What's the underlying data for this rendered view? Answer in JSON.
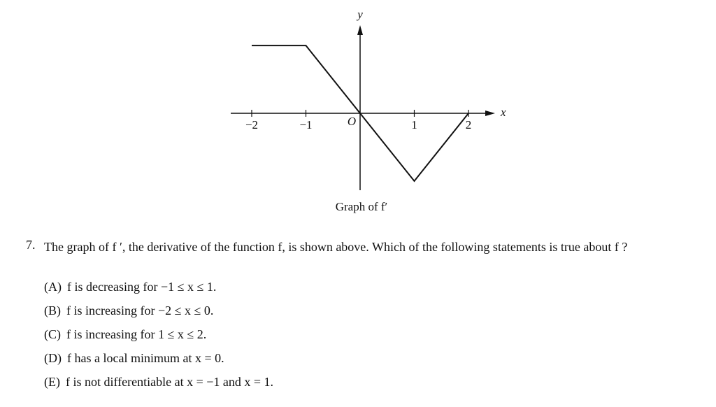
{
  "figure": {
    "caption": "Graph of f′",
    "x_label": "x",
    "y_label": "y",
    "origin_label": "O",
    "xticks": [
      {
        "value": -2,
        "label": "−2"
      },
      {
        "value": -1,
        "label": "−1"
      },
      1,
      2
    ],
    "points": {
      "x": [
        -2,
        -1,
        0,
        1,
        2
      ],
      "y": [
        1.25,
        1.25,
        0,
        -1.25,
        0
      ]
    }
  },
  "question": {
    "number": "7.",
    "text": "The graph of f ′, the derivative of the function f, is shown above. Which of the following statements is true about f ?",
    "options": [
      {
        "label": "(A)",
        "text": "f is decreasing for −1 ≤ x ≤ 1."
      },
      {
        "label": "(B)",
        "text": "f is increasing for −2 ≤ x ≤ 0."
      },
      {
        "label": "(C)",
        "text": "f is increasing for 1 ≤ x ≤ 2."
      },
      {
        "label": "(D)",
        "text": "f has a local minimum at x = 0."
      },
      {
        "label": "(E)",
        "text": "f is not differentiable at x = −1 and x = 1."
      }
    ]
  }
}
